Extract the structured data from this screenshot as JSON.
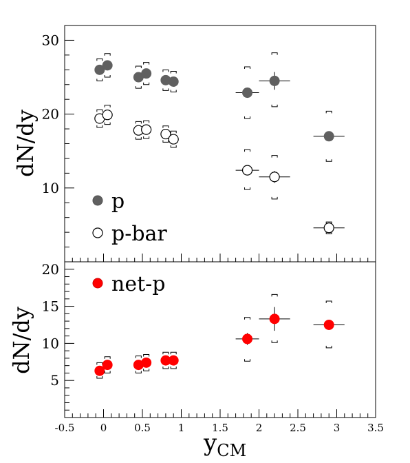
{
  "chart_data": [
    {
      "type": "scatter",
      "ylabel": "dN/dy",
      "xlim": [
        -0.5,
        3.5
      ],
      "ylim": [
        0,
        32
      ],
      "yticks": [
        10,
        20,
        30
      ],
      "legend_position": "bottom-left",
      "series": [
        {
          "name": "p",
          "marker": "filled",
          "color": "#606060",
          "points": [
            {
              "x": -0.05,
              "y": 26.0,
              "sys_lo": 24.5,
              "sys_hi": 27.5,
              "xerr": 0,
              "yerr": 0
            },
            {
              "x": 0.05,
              "y": 26.6,
              "sys_lo": 25.0,
              "sys_hi": 28.2,
              "xerr": 0,
              "yerr": 0
            },
            {
              "x": 0.45,
              "y": 25.0,
              "sys_lo": 23.5,
              "sys_hi": 26.5,
              "xerr": 0,
              "yerr": 0
            },
            {
              "x": 0.55,
              "y": 25.5,
              "sys_lo": 24.0,
              "sys_hi": 27.0,
              "xerr": 0,
              "yerr": 0
            },
            {
              "x": 0.8,
              "y": 24.6,
              "sys_lo": 23.2,
              "sys_hi": 26.0,
              "xerr": 0,
              "yerr": 0
            },
            {
              "x": 0.9,
              "y": 24.4,
              "sys_lo": 23.0,
              "sys_hi": 25.8,
              "xerr": 0,
              "yerr": 0
            },
            {
              "x": 1.85,
              "y": 22.9,
              "sys_lo": 19.4,
              "sys_hi": 26.4,
              "xerr": 0.15,
              "yerr": 0.7
            },
            {
              "x": 2.2,
              "y": 24.5,
              "sys_lo": 21.0,
              "sys_hi": 28.3,
              "xerr": 0.2,
              "yerr": 1.2
            },
            {
              "x": 2.9,
              "y": 17.0,
              "sys_lo": 13.6,
              "sys_hi": 20.4,
              "xerr": 0.2,
              "yerr": 0
            }
          ]
        },
        {
          "name": "p-bar",
          "marker": "open",
          "color": "#000000",
          "points": [
            {
              "x": -0.05,
              "y": 19.4,
              "sys_lo": 18.2,
              "sys_hi": 20.6,
              "xerr": 0,
              "yerr": 0
            },
            {
              "x": 0.05,
              "y": 19.9,
              "sys_lo": 18.6,
              "sys_hi": 21.2,
              "xerr": 0,
              "yerr": 0
            },
            {
              "x": 0.45,
              "y": 17.8,
              "sys_lo": 16.6,
              "sys_hi": 19.0,
              "xerr": 0,
              "yerr": 0
            },
            {
              "x": 0.55,
              "y": 17.9,
              "sys_lo": 16.7,
              "sys_hi": 19.1,
              "xerr": 0,
              "yerr": 0
            },
            {
              "x": 0.8,
              "y": 17.3,
              "sys_lo": 16.2,
              "sys_hi": 18.4,
              "xerr": 0,
              "yerr": 0
            },
            {
              "x": 0.9,
              "y": 16.6,
              "sys_lo": 15.5,
              "sys_hi": 17.7,
              "xerr": 0,
              "yerr": 0
            },
            {
              "x": 1.85,
              "y": 12.4,
              "sys_lo": 9.8,
              "sys_hi": 15.2,
              "xerr": 0.15,
              "yerr": 0
            },
            {
              "x": 2.2,
              "y": 11.5,
              "sys_lo": 8.5,
              "sys_hi": 14.4,
              "xerr": 0.2,
              "yerr": 0.8
            },
            {
              "x": 2.9,
              "y": 4.6,
              "sys_lo": 3.8,
              "sys_hi": 5.4,
              "xerr": 0.2,
              "yerr": 0
            }
          ]
        }
      ]
    },
    {
      "type": "scatter",
      "ylabel": "dN/dy",
      "xlabel": "y",
      "xlabel_sub": "CM",
      "xlim": [
        -0.5,
        3.5
      ],
      "ylim": [
        0,
        21
      ],
      "xticks": [
        "-0.5",
        "0",
        "0.5",
        "1",
        "1.5",
        "2",
        "2.5",
        "3",
        "3.5"
      ],
      "yticks": [
        5,
        10,
        15,
        20
      ],
      "legend_position": "top-left",
      "series": [
        {
          "name": "net-p",
          "marker": "filled",
          "color": "#ff0000",
          "points": [
            {
              "x": -0.05,
              "y": 6.3,
              "sys_lo": 5.3,
              "sys_hi": 7.4,
              "xerr": 0,
              "yerr": 0
            },
            {
              "x": 0.05,
              "y": 7.1,
              "sys_lo": 6.0,
              "sys_hi": 8.2,
              "xerr": 0,
              "yerr": 0
            },
            {
              "x": 0.45,
              "y": 7.1,
              "sys_lo": 6.0,
              "sys_hi": 8.3,
              "xerr": 0,
              "yerr": 0
            },
            {
              "x": 0.55,
              "y": 7.4,
              "sys_lo": 6.3,
              "sys_hi": 8.5,
              "xerr": 0,
              "yerr": 0
            },
            {
              "x": 0.8,
              "y": 7.7,
              "sys_lo": 6.6,
              "sys_hi": 8.8,
              "xerr": 0,
              "yerr": 0
            },
            {
              "x": 0.9,
              "y": 7.7,
              "sys_lo": 6.6,
              "sys_hi": 8.8,
              "xerr": 0,
              "yerr": 0
            },
            {
              "x": 1.85,
              "y": 10.6,
              "sys_lo": 7.6,
              "sys_hi": 13.5,
              "xerr": 0.15,
              "yerr": 0.8
            },
            {
              "x": 2.2,
              "y": 13.3,
              "sys_lo": 10.1,
              "sys_hi": 16.6,
              "xerr": 0.2,
              "yerr": 1.6
            },
            {
              "x": 2.9,
              "y": 12.5,
              "sys_lo": 9.4,
              "sys_hi": 15.7,
              "xerr": 0.2,
              "yerr": 0
            }
          ]
        }
      ]
    }
  ]
}
